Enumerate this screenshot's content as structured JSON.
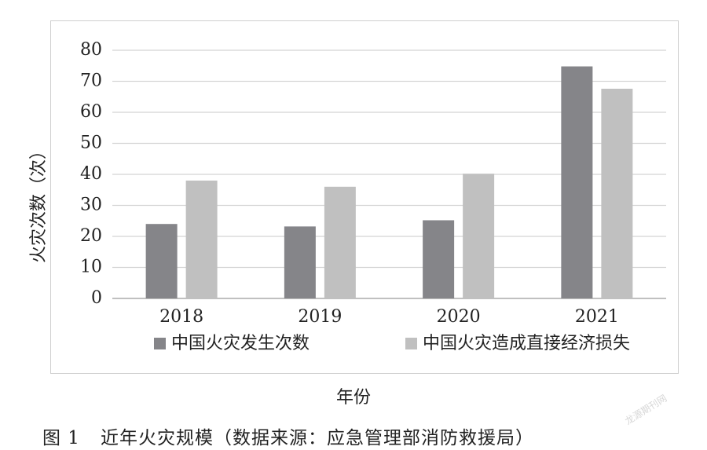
{
  "chart_data": {
    "type": "bar",
    "categories": [
      "2018",
      "2019",
      "2020",
      "2021"
    ],
    "series": [
      {
        "name": "中国火灾发生次数",
        "values": [
          24,
          23.2,
          25.2,
          74.8
        ],
        "color": "#858589"
      },
      {
        "name": "中国火灾造成直接经济损失",
        "values": [
          38,
          36,
          40.2,
          67.6
        ],
        "color": "#c0c0c0"
      }
    ],
    "xlabel": "年份",
    "ylabel": "火灾次数（次）",
    "ylim": [
      0,
      80
    ],
    "yticks": [
      0,
      10,
      20,
      30,
      40,
      50,
      60,
      70,
      80
    ],
    "grid": true,
    "legend_position": "bottom"
  },
  "caption": {
    "number": "图 1",
    "text": "近年火灾规模（数据来源：应急管理部消防救援局）"
  },
  "watermark": "龙源期刊网"
}
